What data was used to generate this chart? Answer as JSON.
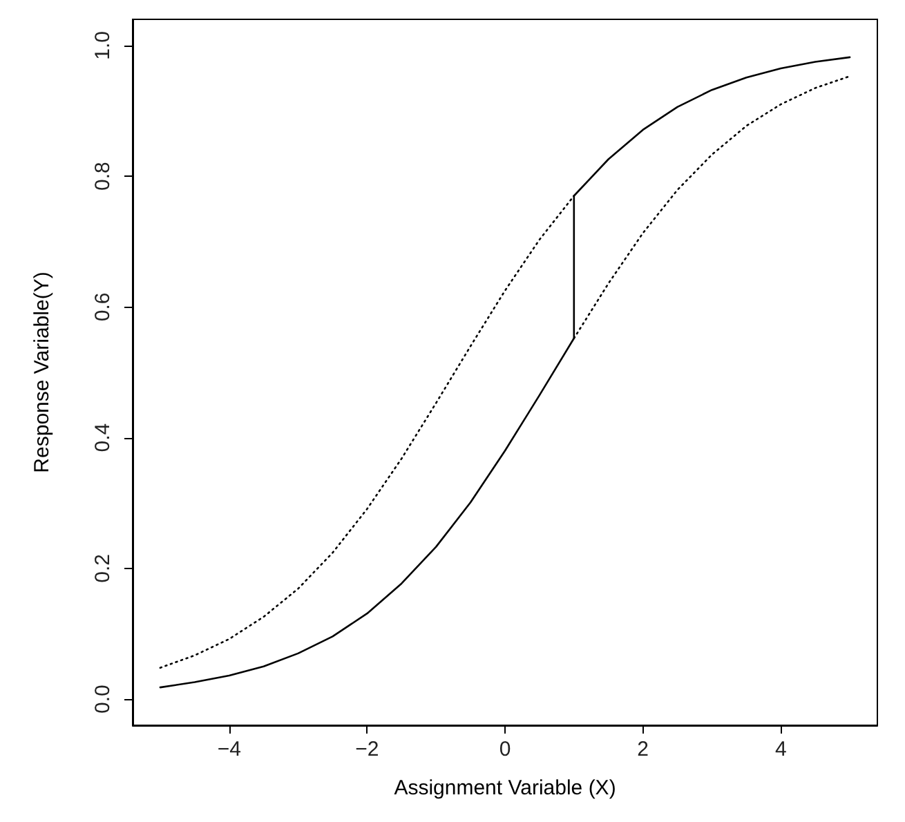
{
  "chart_data": {
    "type": "line",
    "xlabel": "Assignment Variable (X)",
    "ylabel": "Response Variable(Y)",
    "xlim": [
      -5.4,
      5.4
    ],
    "xticks": [
      -4,
      -2,
      0,
      2,
      4
    ],
    "ylim": [
      -0.04,
      1.04
    ],
    "yticks": [
      {
        "value": 0,
        "label": "0.0"
      },
      0.2,
      0.4,
      0.6,
      0.8,
      {
        "value": 1,
        "label": "1.0"
      }
    ],
    "grid": false,
    "marker": "none",
    "series": [
      {
        "color": "#000000",
        "line_style": "solid",
        "x": [
          -5,
          -4.5,
          -4,
          -3.5,
          -3,
          -2.5,
          -2,
          -1.5,
          -1,
          -0.5,
          0,
          0.5,
          1
        ],
        "values": [
          0.018,
          0.026,
          0.036,
          0.05,
          0.07,
          0.096,
          0.131,
          0.177,
          0.233,
          0.301,
          0.38,
          0.465,
          0.552
        ]
      },
      {
        "color": "#000000",
        "line_style": "solid",
        "x": [
          1,
          1.5,
          2,
          2.5,
          3,
          3.5,
          4,
          4.5,
          5
        ],
        "values": [
          0.77,
          0.826,
          0.871,
          0.906,
          0.932,
          0.951,
          0.965,
          0.975,
          0.982
        ]
      },
      {
        "color": "#000000",
        "line_style": "dotted",
        "x": [
          -5,
          -4.5,
          -4,
          -3.5,
          -3,
          -2.5,
          -2,
          -1.5,
          -1,
          -0.5,
          0,
          0.5,
          1
        ],
        "values": [
          0.048,
          0.067,
          0.092,
          0.126,
          0.169,
          0.224,
          0.291,
          0.368,
          0.453,
          0.54,
          0.625,
          0.703,
          0.77
        ]
      },
      {
        "color": "#000000",
        "line_style": "dotted",
        "x": [
          1,
          1.5,
          2,
          2.5,
          3,
          3.5,
          4,
          4.5,
          5
        ],
        "values": [
          0.552,
          0.636,
          0.713,
          0.779,
          0.833,
          0.877,
          0.91,
          0.935,
          0.953
        ]
      },
      {
        "color": "#000000",
        "line_style": "solid",
        "x": [
          1,
          1
        ],
        "values": [
          0.552,
          0.77
        ]
      }
    ]
  }
}
